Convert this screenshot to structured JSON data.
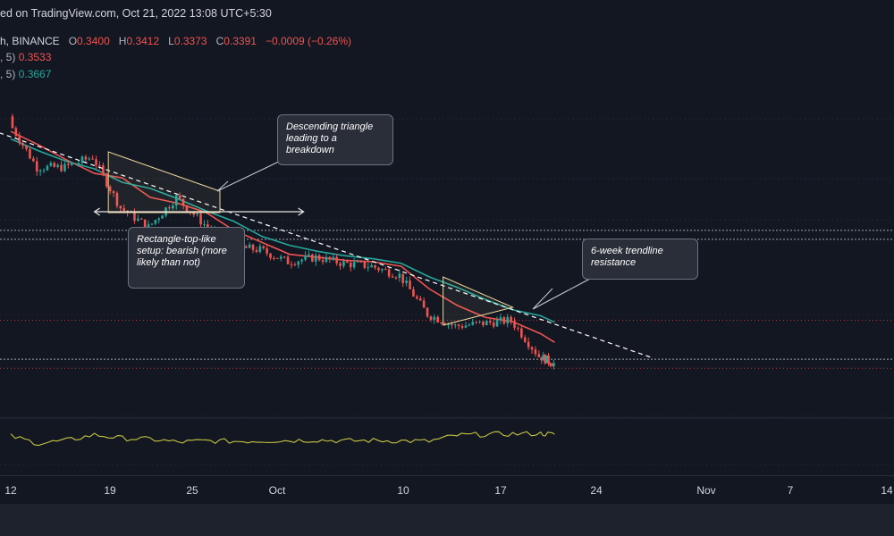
{
  "header": {
    "text": "ed on TradingView.com, Oct 21, 2022 13:08 UTC+5:30"
  },
  "legend": {
    "symbol_tail": "h, BINANCE",
    "o_label": "O",
    "o_value": "0.3400",
    "h_label": "H",
    "h_value": "0.3412",
    "l_label": "L",
    "l_value": "0.3373",
    "c_label": "C",
    "c_value": "0.3391",
    "change": "−0.0009 (−0.26%)",
    "ma1_label": ", 5)",
    "ma1_value": "0.3533",
    "ma2_label": ", 5)",
    "ma2_value": "0.3667"
  },
  "annotations": {
    "triangle": "Descending triangle leading to a breakdown",
    "rectangle": "Rectangle-top-like setup: bearish (more likely than not)",
    "trendline": "6-week trendline resistance"
  },
  "colors": {
    "background": "#131722",
    "up_candle": "#26a69a",
    "down_candle": "#ef5350",
    "ma_fast": "#ef5350",
    "ma_slow": "#26a69a",
    "trendline": "#ffffff",
    "oscillator": "#c5c540"
  },
  "chart_data": {
    "type": "candlestick",
    "x_tick_labels": [
      "12",
      "19",
      "25",
      "Oct",
      "10",
      "17",
      "24",
      "Nov",
      "7",
      "14"
    ],
    "x": [
      "2022-09-12",
      "2022-09-14",
      "2022-09-16",
      "2022-09-18",
      "2022-09-20",
      "2022-09-22",
      "2022-09-24",
      "2022-09-26",
      "2022-09-28",
      "2022-09-30",
      "2022-10-02",
      "2022-10-04",
      "2022-10-06",
      "2022-10-08",
      "2022-10-10",
      "2022-10-12",
      "2022-10-14",
      "2022-10-16",
      "2022-10-18",
      "2022-10-20",
      "2022-10-21"
    ],
    "close": [
      0.5,
      0.47,
      0.47,
      0.477,
      0.443,
      0.43,
      0.45,
      0.432,
      0.417,
      0.415,
      0.407,
      0.41,
      0.406,
      0.404,
      0.398,
      0.372,
      0.364,
      0.366,
      0.368,
      0.344,
      0.3391
    ],
    "series": [
      {
        "name": "MA fast",
        "color": "#ef5350",
        "values": [
          0.494,
          0.485,
          0.475,
          0.466,
          0.463,
          0.45,
          0.446,
          0.44,
          0.428,
          0.42,
          0.412,
          0.41,
          0.408,
          0.407,
          0.404,
          0.389,
          0.378,
          0.37,
          0.367,
          0.359,
          0.3533
        ]
      },
      {
        "name": "MA slow",
        "color": "#26a69a",
        "values": [
          0.489,
          0.481,
          0.474,
          0.469,
          0.46,
          0.456,
          0.449,
          0.441,
          0.434,
          0.424,
          0.418,
          0.414,
          0.411,
          0.409,
          0.406,
          0.397,
          0.39,
          0.382,
          0.375,
          0.371,
          0.3667
        ]
      }
    ],
    "trendline_points": [
      [
        "2022-09-09",
        0.5
      ],
      [
        "2022-10-28",
        0.343
      ]
    ],
    "horizontal_levels": [
      0.428,
      0.422,
      0.368,
      0.342,
      0.336
    ],
    "oscillator": {
      "name": "",
      "values": [
        0.62,
        0.45,
        0.52,
        0.65,
        0.57,
        0.55,
        0.48,
        0.51,
        0.5,
        0.51,
        0.52,
        0.53,
        0.51,
        0.52,
        0.51,
        0.5,
        0.64,
        0.66,
        0.67,
        0.68,
        0.66
      ]
    }
  }
}
